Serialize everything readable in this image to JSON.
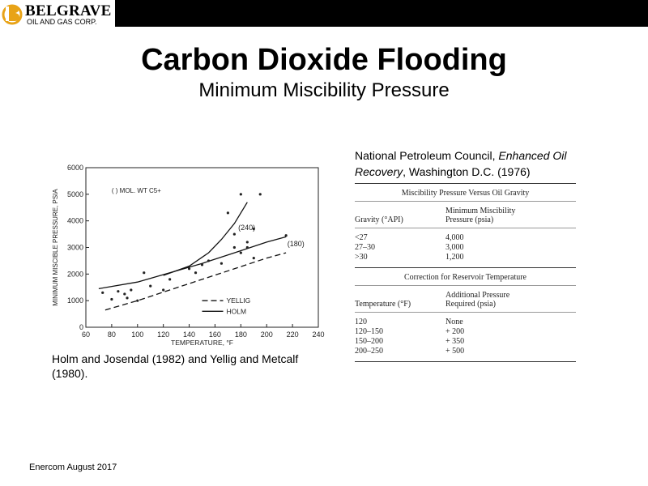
{
  "logo": {
    "name": "BELGRAVE",
    "sub": "OIL AND GAS CORP."
  },
  "title": "Carbon Dioxide Flooding",
  "subtitle": "Minimum Miscibility Pressure",
  "chart_data": {
    "type": "line",
    "xlabel": "TEMPERATURE, °F",
    "ylabel": "MINIMUM MISCIBLE PRESSURE, PSIA",
    "xlim": [
      60,
      240
    ],
    "ylim": [
      0,
      6000
    ],
    "x_ticks": [
      "60",
      "80",
      "100",
      "120",
      "140",
      "160",
      "180",
      "200",
      "220",
      "240"
    ],
    "y_ticks": [
      "0",
      "1000",
      "2000",
      "3000",
      "4000",
      "5000",
      "6000"
    ],
    "annotation": "( ) MOL. WT C5+",
    "legend": [
      "YELLIG",
      "HOLM"
    ],
    "legend_position": "bottom-right",
    "curve_labels": [
      "(240)",
      "(180)"
    ],
    "series": [
      {
        "name": "YELLIG",
        "style": "dashed",
        "x": [
          75,
          100,
          125,
          150,
          175,
          200,
          215
        ],
        "y": [
          650,
          1000,
          1400,
          1800,
          2200,
          2600,
          2800
        ]
      },
      {
        "name": "HOLM",
        "style": "solid",
        "x": [
          70,
          100,
          125,
          150,
          175,
          200,
          215
        ],
        "y": [
          1450,
          1700,
          2050,
          2400,
          2800,
          3200,
          3400
        ]
      },
      {
        "name": "(240)",
        "style": "solid",
        "x": [
          120,
          140,
          155,
          165,
          175,
          185
        ],
        "y": [
          1950,
          2300,
          2800,
          3300,
          3900,
          4700
        ]
      },
      {
        "name": "points",
        "style": "markers",
        "x": [
          73,
          80,
          85,
          90,
          92,
          95,
          100,
          105,
          110,
          120,
          125,
          140,
          145,
          150,
          155,
          165,
          170,
          175,
          175,
          180,
          185,
          185,
          190,
          190,
          195,
          215,
          180
        ],
        "y": [
          1300,
          1050,
          1350,
          1250,
          1100,
          1400,
          1000,
          2050,
          1550,
          1400,
          1800,
          2200,
          2050,
          2350,
          2500,
          2400,
          4300,
          3000,
          3500,
          2800,
          3000,
          3200,
          3700,
          2600,
          5000,
          3450,
          5000
        ]
      }
    ]
  },
  "cite_left": "Holm and Josendal (1982) and Yellig and Metcalf (1980).",
  "ref": {
    "part1": "National Petroleum Council, ",
    "italic": "Enhanced Oil Recovery",
    "part2": ", Washington D.C. (1976)"
  },
  "table1": {
    "caption": "Miscibility Pressure Versus Oil Gravity",
    "col1": "Gravity (°API)",
    "col2a": "Minimum Miscibility",
    "col2b": "Pressure (psia)",
    "rows": [
      {
        "a": "<27",
        "b": "4,000"
      },
      {
        "a": "27–30",
        "b": "3,000"
      },
      {
        "a": ">30",
        "b": "1,200"
      }
    ]
  },
  "table2": {
    "caption": "Correction for Reservoir Temperature",
    "col1": "Temperature (°F)",
    "col2a": "Additional Pressure",
    "col2b": "Required (psia)",
    "rows": [
      {
        "a": "120",
        "b": "None"
      },
      {
        "a": "120–150",
        "b": "+ 200"
      },
      {
        "a": "150–200",
        "b": "+ 350"
      },
      {
        "a": "200–250",
        "b": "+ 500"
      }
    ]
  },
  "footer": "Enercom August 2017"
}
